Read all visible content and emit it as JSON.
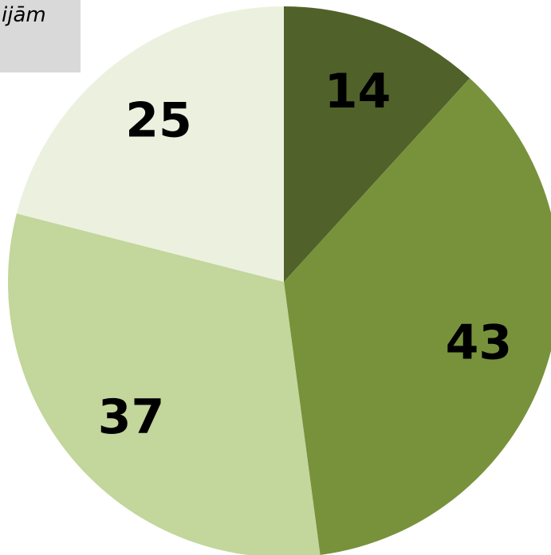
{
  "chart_data": {
    "type": "pie",
    "categories": [
      "",
      "",
      "",
      ""
    ],
    "values": [
      14,
      43,
      37,
      25
    ],
    "colors": [
      "#50622a",
      "#78923c",
      "#c3d69b",
      "#ebf1de"
    ],
    "start_angle": "top",
    "direction": "clockwise"
  },
  "legend_fragment": "ijām"
}
